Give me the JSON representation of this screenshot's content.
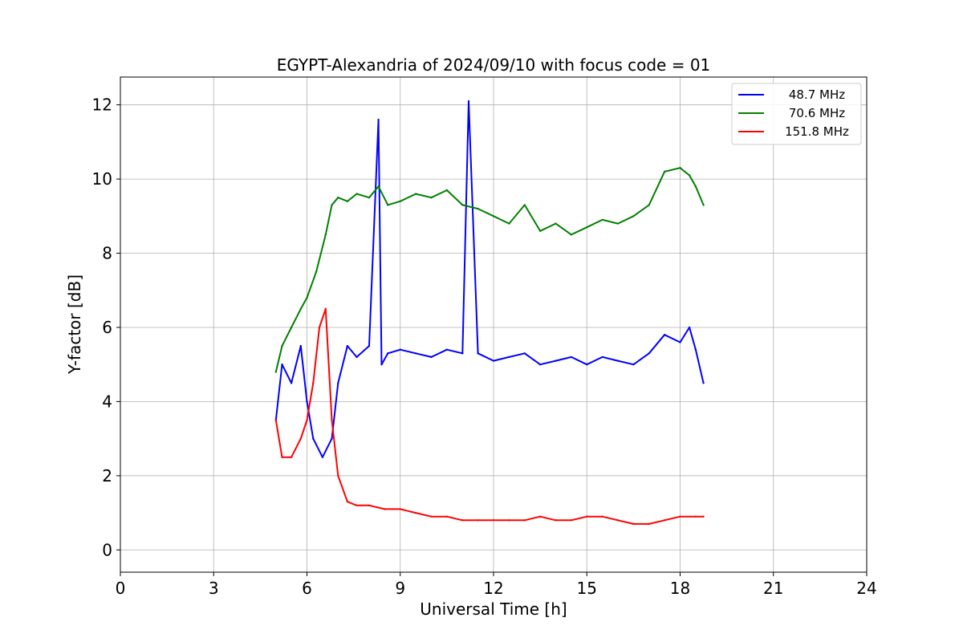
{
  "chart_data": {
    "type": "line",
    "title": "EGYPT-Alexandria of 2024/09/10 with focus code = 01",
    "xlabel": "Universal Time [h]",
    "ylabel": "Y-factor [dB]",
    "xlim": [
      0,
      24
    ],
    "ylim": [
      -0.6,
      12.75
    ],
    "xticks": [
      0,
      3,
      6,
      9,
      12,
      15,
      18,
      21,
      24
    ],
    "yticks": [
      0,
      2,
      4,
      6,
      8,
      10,
      12
    ],
    "grid": true,
    "legend_position": "top-right",
    "series": [
      {
        "name": "48.7 MHz",
        "color": "#0000ff",
        "x": [
          5.0,
          5.2,
          5.5,
          5.8,
          6.0,
          6.2,
          6.5,
          6.8,
          7.0,
          7.3,
          7.6,
          8.0,
          8.3,
          8.4,
          8.6,
          9.0,
          9.5,
          10.0,
          10.5,
          11.0,
          11.2,
          11.5,
          12.0,
          12.5,
          13.0,
          13.5,
          14.0,
          14.5,
          15.0,
          15.5,
          16.0,
          16.5,
          17.0,
          17.5,
          18.0,
          18.3,
          18.5,
          18.75
        ],
        "y": [
          3.5,
          5.0,
          4.5,
          5.5,
          4.0,
          3.0,
          2.5,
          3.0,
          4.5,
          5.5,
          5.2,
          5.5,
          11.6,
          5.0,
          5.3,
          5.4,
          5.3,
          5.2,
          5.4,
          5.3,
          12.1,
          5.3,
          5.1,
          5.2,
          5.3,
          5.0,
          5.1,
          5.2,
          5.0,
          5.2,
          5.1,
          5.0,
          5.3,
          5.8,
          5.6,
          6.0,
          5.4,
          4.5
        ]
      },
      {
        "name": "70.6 MHz",
        "color": "#008000",
        "x": [
          5.0,
          5.2,
          5.5,
          5.8,
          6.0,
          6.3,
          6.6,
          6.8,
          7.0,
          7.3,
          7.6,
          8.0,
          8.3,
          8.6,
          9.0,
          9.5,
          10.0,
          10.5,
          11.0,
          11.5,
          12.0,
          12.5,
          13.0,
          13.5,
          14.0,
          14.5,
          15.0,
          15.5,
          16.0,
          16.5,
          17.0,
          17.5,
          18.0,
          18.3,
          18.5,
          18.75
        ],
        "y": [
          4.8,
          5.5,
          6.0,
          6.5,
          6.8,
          7.5,
          8.5,
          9.3,
          9.5,
          9.4,
          9.6,
          9.5,
          9.8,
          9.3,
          9.4,
          9.6,
          9.5,
          9.7,
          9.3,
          9.2,
          9.0,
          8.8,
          9.3,
          8.6,
          8.8,
          8.5,
          8.7,
          8.9,
          8.8,
          9.0,
          9.3,
          10.2,
          10.3,
          10.1,
          9.8,
          9.3
        ]
      },
      {
        "name": "151.8 MHz",
        "color": "#ff0000",
        "x": [
          5.0,
          5.2,
          5.5,
          5.8,
          6.0,
          6.2,
          6.4,
          6.6,
          6.8,
          7.0,
          7.3,
          7.6,
          8.0,
          8.5,
          9.0,
          9.5,
          10.0,
          10.5,
          11.0,
          11.5,
          12.0,
          12.5,
          13.0,
          13.5,
          14.0,
          14.5,
          15.0,
          15.5,
          16.0,
          16.5,
          17.0,
          17.5,
          18.0,
          18.5,
          18.75
        ],
        "y": [
          3.5,
          2.5,
          2.5,
          3.0,
          3.5,
          4.5,
          6.0,
          6.5,
          3.5,
          2.0,
          1.3,
          1.2,
          1.2,
          1.1,
          1.1,
          1.0,
          0.9,
          0.9,
          0.8,
          0.8,
          0.8,
          0.8,
          0.8,
          0.9,
          0.8,
          0.8,
          0.9,
          0.9,
          0.8,
          0.7,
          0.7,
          0.8,
          0.9,
          0.9,
          0.9
        ]
      }
    ]
  }
}
